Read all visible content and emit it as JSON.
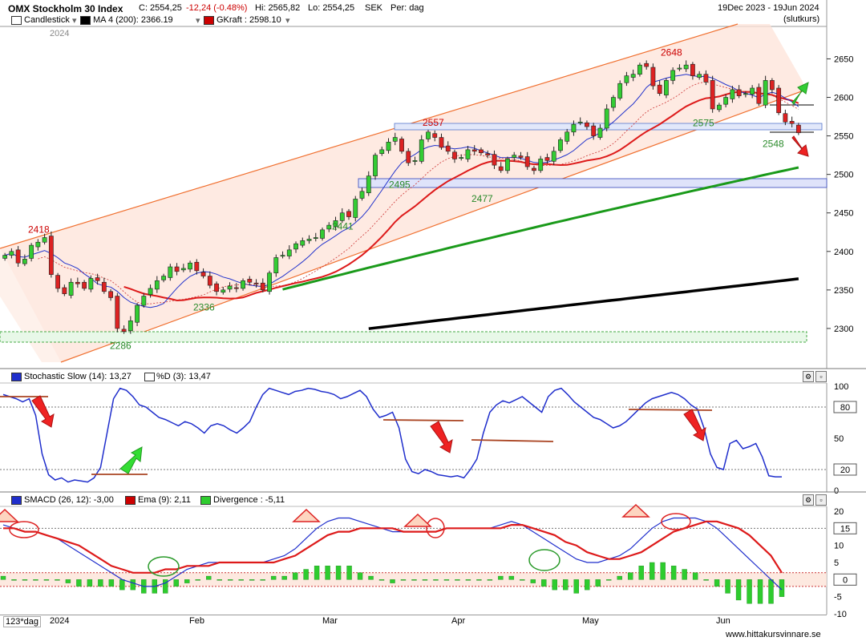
{
  "header": {
    "title": "OMX Stockholm 30 Index",
    "close": "C: 2554,25",
    "change": "-12,24 (-0.48%)",
    "high": "Hi: 2565,82",
    "low": "Lo: 2554,25",
    "currency": "SEK",
    "period": "Per: dag",
    "date_range": "19Dec 2023 - 19Jun 2024",
    "price_type": "(slutkurs)",
    "legend": [
      {
        "label": "Candlestick",
        "color": "#ffffff"
      },
      {
        "label": "MA 4 (200): 2366.19",
        "color": "#000000"
      },
      {
        "label": "GKraft : 2598.10",
        "color": "#cc0000"
      }
    ],
    "year_label": "2024"
  },
  "stoch_header": {
    "label": "Stochastic Slow (14): 13,27",
    "label2": "%D (3): 13,47",
    "color1": "#1f2ecc",
    "color2": "#ffffff"
  },
  "macd_header": {
    "label1": "SMACD (26, 12): -3,00",
    "label2": "Ema (9): 2,11",
    "label3": "Divergence : -5,11",
    "color1": "#1f2ecc",
    "color2": "#cc0000",
    "color3": "#2ecc2e"
  },
  "footer": {
    "period_selector": "123*dag",
    "months": [
      "2024",
      "Feb",
      "Mar",
      "Apr",
      "May",
      "Jun"
    ],
    "source": "www.hittakursvinnare.se"
  },
  "chart_data": [
    {
      "type": "candlestick",
      "title": "OMX Stockholm 30 Index",
      "ylim": [
        2250,
        2690
      ],
      "y_ticks": [
        2300,
        2350,
        2400,
        2450,
        2500,
        2550,
        2600,
        2650
      ],
      "annotations": [
        {
          "text": "2418",
          "value": 2418,
          "color": "#cc0000"
        },
        {
          "text": "2286",
          "value": 2286,
          "color": "#2a8a2a"
        },
        {
          "text": "2336",
          "value": 2336,
          "color": "#2a8a2a"
        },
        {
          "text": "2441",
          "value": 2441,
          "color": "#2a8a2a"
        },
        {
          "text": "2495",
          "value": 2495,
          "color": "#2a8a2a"
        },
        {
          "text": "2557",
          "value": 2557,
          "color": "#cc0000"
        },
        {
          "text": "2477",
          "value": 2477,
          "color": "#2a8a2a"
        },
        {
          "text": "2648",
          "value": 2648,
          "color": "#cc0000"
        },
        {
          "text": "2575",
          "value": 2575,
          "color": "#2a8a2a"
        },
        {
          "text": "2548",
          "value": 2548,
          "color": "#2a8a2a"
        }
      ],
      "closes": [
        2395,
        2400,
        2385,
        2390,
        2408,
        2412,
        2418,
        2370,
        2352,
        2345,
        2360,
        2358,
        2352,
        2365,
        2362,
        2348,
        2340,
        2300,
        2296,
        2310,
        2330,
        2342,
        2352,
        2362,
        2368,
        2380,
        2374,
        2378,
        2385,
        2375,
        2368,
        2356,
        2348,
        2350,
        2355,
        2352,
        2362,
        2360,
        2358,
        2350,
        2372,
        2392,
        2395,
        2402,
        2410,
        2414,
        2416,
        2418,
        2428,
        2434,
        2440,
        2450,
        2445,
        2468,
        2478,
        2498,
        2525,
        2532,
        2542,
        2548,
        2530,
        2515,
        2518,
        2545,
        2555,
        2548,
        2535,
        2530,
        2520,
        2522,
        2532,
        2530,
        2528,
        2525,
        2512,
        2505,
        2520,
        2525,
        2522,
        2510,
        2505,
        2520,
        2518,
        2530,
        2545,
        2555,
        2565,
        2568,
        2562,
        2550,
        2560,
        2585,
        2600,
        2618,
        2628,
        2630,
        2642,
        2640,
        2615,
        2605,
        2622,
        2635,
        2638,
        2642,
        2628,
        2630,
        2620,
        2585,
        2590,
        2600,
        2610,
        2602,
        2605,
        2612,
        2592,
        2622,
        2610,
        2580,
        2568,
        2566,
        2554
      ]
    },
    {
      "type": "line",
      "title": "Stochastic Slow (14): 13,27",
      "ylim": [
        0,
        100
      ],
      "y_ticks": [
        0,
        20,
        50,
        80,
        100
      ],
      "ref_lines": [
        20,
        80
      ],
      "series": [
        {
          "name": "Stochastic Slow (14)",
          "values": [
            92,
            90,
            88,
            85,
            88,
            72,
            35,
            15,
            10,
            12,
            8,
            10,
            9,
            8,
            12,
            22,
            55,
            88,
            98,
            96,
            90,
            82,
            80,
            75,
            70,
            68,
            65,
            62,
            66,
            64,
            60,
            55,
            62,
            64,
            62,
            58,
            55,
            60,
            66,
            80,
            92,
            98,
            96,
            94,
            92,
            95,
            96,
            98,
            97,
            95,
            94,
            92,
            88,
            90,
            93,
            96,
            90,
            78,
            70,
            72,
            75,
            60,
            30,
            18,
            16,
            20,
            18,
            15,
            14,
            13,
            14,
            12,
            20,
            30,
            55,
            75,
            82,
            86,
            84,
            87,
            90,
            85,
            80,
            75,
            90,
            96,
            98,
            92,
            85,
            80,
            75,
            70,
            68,
            64,
            60,
            62,
            66,
            72,
            78,
            84,
            88,
            90,
            92,
            94,
            92,
            88,
            82,
            78,
            60,
            35,
            22,
            20,
            45,
            48,
            40,
            42,
            45,
            32,
            14,
            13,
            13
          ]
        }
      ]
    },
    {
      "type": "line",
      "title": "SMACD (26, 12): -3,00",
      "ylim": [
        -10,
        20
      ],
      "y_ticks": [
        -10,
        -5,
        0,
        5,
        10,
        15,
        20
      ],
      "series": [
        {
          "name": "SMACD (26, 12)",
          "values": [
            16,
            15,
            14,
            14,
            13,
            12,
            10,
            8,
            6,
            4,
            2,
            0,
            -1,
            -2,
            -2,
            -1,
            1,
            3,
            4,
            5,
            5,
            5,
            5,
            5,
            5,
            6,
            7,
            9,
            12,
            15,
            17,
            18,
            18,
            17,
            16,
            15,
            14,
            14,
            14,
            14,
            14,
            15,
            15,
            15,
            15,
            15,
            16,
            17,
            16,
            14,
            12,
            10,
            8,
            6,
            5,
            5,
            6,
            7,
            9,
            12,
            15,
            17,
            18,
            18,
            18,
            17,
            15,
            12,
            9,
            6,
            3,
            0,
            -3
          ]
        },
        {
          "name": "Ema (9)",
          "values": [
            15,
            15,
            14,
            14,
            13,
            12,
            11,
            10,
            8,
            6,
            4,
            3,
            2,
            2,
            2,
            3,
            3,
            4,
            4,
            4,
            5,
            5,
            5,
            5,
            5,
            5,
            6,
            7,
            9,
            11,
            13,
            14,
            14,
            15,
            15,
            15,
            15,
            14,
            14,
            14,
            14,
            15,
            15,
            15,
            15,
            15,
            15,
            16,
            16,
            15,
            14,
            13,
            11,
            10,
            8,
            7,
            6,
            6,
            7,
            8,
            10,
            12,
            14,
            15,
            16,
            17,
            17,
            16,
            15,
            13,
            10,
            7,
            2
          ]
        },
        {
          "name": "Divergence",
          "values": [
            1,
            0,
            0,
            0,
            0,
            0,
            -1,
            -2,
            -2,
            -2,
            -2,
            -3,
            -3,
            -4,
            -4,
            -4,
            -2,
            -1,
            0,
            1,
            0,
            0,
            0,
            0,
            0,
            1,
            1,
            2,
            3,
            4,
            4,
            4,
            4,
            2,
            1,
            0,
            -1,
            0,
            0,
            0,
            0,
            0,
            0,
            0,
            0,
            0,
            1,
            1,
            0,
            -1,
            -2,
            -3,
            -3,
            -4,
            -3,
            -2,
            0,
            1,
            2,
            4,
            5,
            5,
            4,
            3,
            2,
            0,
            -2,
            -4,
            -6,
            -7,
            -7,
            -7,
            -5
          ]
        }
      ]
    }
  ]
}
